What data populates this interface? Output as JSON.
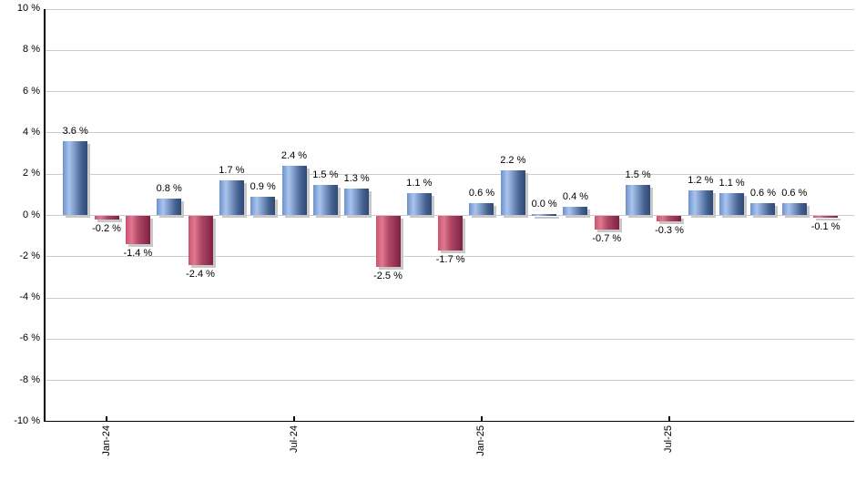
{
  "chart_data": {
    "type": "bar",
    "title": "",
    "unit": "%",
    "values": [
      3.6,
      -0.2,
      -1.4,
      0.8,
      -2.4,
      1.7,
      0.9,
      2.4,
      1.5,
      1.3,
      -2.5,
      1.1,
      -1.7,
      0.6,
      2.2,
      0.0,
      0.4,
      -0.7,
      1.5,
      -0.3,
      1.2,
      1.1,
      0.6,
      0.6,
      -0.1
    ],
    "bar_value_labels": [
      "3.6 %",
      "-0.2 %",
      "-1.4 %",
      "0.8 %",
      "-2.4 %",
      "1.7 %",
      "0.9 %",
      "2.4 %",
      "1.5 %",
      "1.3 %",
      "-2.5 %",
      "1.1 %",
      "-1.7 %",
      "0.6 %",
      "2.2 %",
      "0.0 %",
      "0.4 %",
      "-0.7 %",
      "1.5 %",
      "-0.3 %",
      "1.2 %",
      "1.1 %",
      "0.6 %",
      "0.6 %",
      "-0.1 %"
    ],
    "x_ticks": [
      {
        "bar_index": 1,
        "label": "Jan-24"
      },
      {
        "bar_index": 7,
        "label": "Jul-24"
      },
      {
        "bar_index": 13,
        "label": "Jan-25"
      },
      {
        "bar_index": 19,
        "label": "Jul-25"
      }
    ],
    "y_tick_labels": [
      "10 %",
      "8 %",
      "6 %",
      "4 %",
      "2 %",
      "0 %",
      "-2 %",
      "-4 %",
      "-6 %",
      "-8 %",
      "-10 %"
    ],
    "ylim": [
      -10,
      10
    ],
    "y_grid_step": 2,
    "grid": true,
    "legend": "none",
    "xlabel": "",
    "ylabel": "",
    "colors": {
      "positive_gradient": [
        "#6e91cd 0%",
        "#a8c4ee 26%",
        "#7c99c8 48%",
        "#45618f 76%",
        "#2f4a75 100%"
      ],
      "negative_gradient": [
        "#cb5270 0%",
        "#e0798f 24%",
        "#b04766 52%",
        "#7e2142 100%"
      ],
      "gridline": "#cccccc",
      "axis": "#000000",
      "bar_shadow": "#c8c8c8",
      "text": "#000000",
      "background": "#ffffff"
    }
  }
}
